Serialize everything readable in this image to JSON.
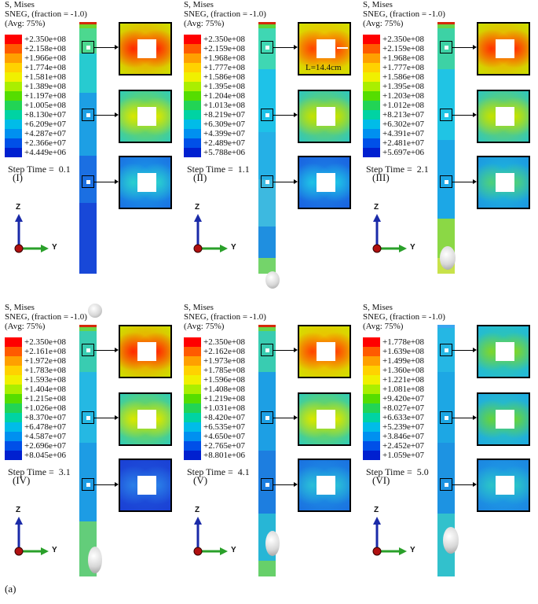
{
  "legend_colors": [
    "#ff0000",
    "#ff5a00",
    "#ffa000",
    "#ffd200",
    "#f0f000",
    "#aaee00",
    "#55dd00",
    "#22d455",
    "#00d3a3",
    "#00bce8",
    "#0090f0",
    "#0050e8",
    "#0020d0"
  ],
  "header": {
    "line1": "S, Mises",
    "line2": "SNEG, (fraction = -1.0)",
    "line3": "(Avg: 75%)"
  },
  "step_label": "Step Time =",
  "axes": {
    "z": "Z",
    "y": "Y"
  },
  "annotation": "L=14.4cm",
  "caption": "(a)",
  "panels": [
    {
      "roman": "(I)",
      "step_value": "0.1",
      "legend": [
        "+2.350e+08",
        "+2.158e+08",
        "+1.966e+08",
        "+1.774e+08",
        "+1.581e+08",
        "+1.389e+08",
        "+1.197e+08",
        "+1.005e+08",
        "+8.130e+07",
        "+6.209e+07",
        "+4.287e+07",
        "+2.366e+07",
        "+4.449e+06"
      ]
    },
    {
      "roman": "(II)",
      "step_value": "1.1",
      "legend": [
        "+2.350e+08",
        "+2.159e+08",
        "+1.968e+08",
        "+1.777e+08",
        "+1.586e+08",
        "+1.395e+08",
        "+1.204e+08",
        "+1.013e+08",
        "+8.219e+07",
        "+6.309e+07",
        "+4.399e+07",
        "+2.489e+07",
        "+5.788e+06"
      ]
    },
    {
      "roman": "(III)",
      "step_value": "2.1",
      "legend": [
        "+2.350e+08",
        "+2.159e+08",
        "+1.968e+08",
        "+1.777e+08",
        "+1.586e+08",
        "+1.395e+08",
        "+1.203e+08",
        "+1.012e+08",
        "+8.213e+07",
        "+6.302e+07",
        "+4.391e+07",
        "+2.481e+07",
        "+5.697e+06"
      ]
    },
    {
      "roman": "(IV)",
      "step_value": "3.1",
      "legend": [
        "+2.350e+08",
        "+2.161e+08",
        "+1.972e+08",
        "+1.783e+08",
        "+1.593e+08",
        "+1.404e+08",
        "+1.215e+08",
        "+1.026e+08",
        "+8.370e+07",
        "+6.478e+07",
        "+4.587e+07",
        "+2.696e+07",
        "+8.045e+06"
      ]
    },
    {
      "roman": "(V)",
      "step_value": "4.1",
      "legend": [
        "+2.350e+08",
        "+2.162e+08",
        "+1.973e+08",
        "+1.785e+08",
        "+1.596e+08",
        "+1.408e+08",
        "+1.219e+08",
        "+1.031e+08",
        "+8.420e+07",
        "+6.535e+07",
        "+4.650e+07",
        "+2.765e+07",
        "+8.801e+06"
      ]
    },
    {
      "roman": "(VI)",
      "step_value": "5.0",
      "legend": [
        "+1.778e+08",
        "+1.639e+08",
        "+1.499e+08",
        "+1.360e+08",
        "+1.221e+08",
        "+1.081e+08",
        "+9.420e+07",
        "+8.027e+07",
        "+6.633e+07",
        "+5.239e+07",
        "+3.846e+07",
        "+2.452e+07",
        "+1.059e+07"
      ]
    }
  ]
}
